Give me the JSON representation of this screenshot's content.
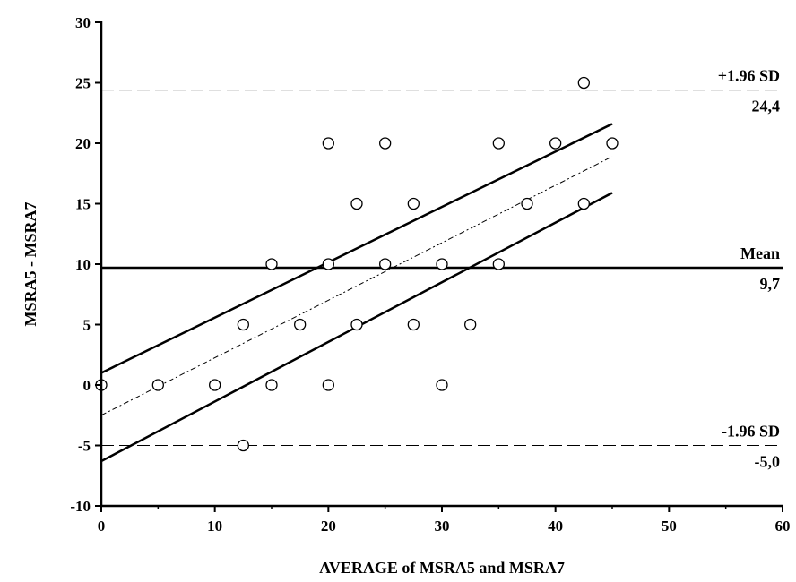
{
  "chart_data": {
    "type": "scatter",
    "title": "",
    "xlabel": "AVERAGE of MSRA5 and MSRA7",
    "ylabel": "MSRA5 - MSRA7",
    "xlim": [
      0,
      60
    ],
    "ylim": [
      -10,
      30
    ],
    "x_ticks": [
      0,
      10,
      20,
      30,
      40,
      50,
      60
    ],
    "y_ticks": [
      -10,
      -5,
      0,
      5,
      10,
      15,
      20,
      25,
      30
    ],
    "grid": false,
    "points": [
      {
        "x": 0,
        "y": 0
      },
      {
        "x": 5,
        "y": 0
      },
      {
        "x": 10,
        "y": 0
      },
      {
        "x": 15,
        "y": 0
      },
      {
        "x": 20,
        "y": 0
      },
      {
        "x": 30,
        "y": 0
      },
      {
        "x": 12.5,
        "y": -5
      },
      {
        "x": 12.5,
        "y": 5
      },
      {
        "x": 17.5,
        "y": 5
      },
      {
        "x": 22.5,
        "y": 5
      },
      {
        "x": 27.5,
        "y": 5
      },
      {
        "x": 32.5,
        "y": 5
      },
      {
        "x": 15,
        "y": 10
      },
      {
        "x": 20,
        "y": 10
      },
      {
        "x": 25,
        "y": 10
      },
      {
        "x": 30,
        "y": 10
      },
      {
        "x": 35,
        "y": 10
      },
      {
        "x": 22.5,
        "y": 15
      },
      {
        "x": 27.5,
        "y": 15
      },
      {
        "x": 37.5,
        "y": 15
      },
      {
        "x": 42.5,
        "y": 15
      },
      {
        "x": 20,
        "y": 20
      },
      {
        "x": 25,
        "y": 20
      },
      {
        "x": 35,
        "y": 20
      },
      {
        "x": 40,
        "y": 20
      },
      {
        "x": 45,
        "y": 20
      },
      {
        "x": 42.5,
        "y": 25
      }
    ],
    "reference_lines": [
      {
        "name": "+1.96 SD",
        "value_label": "24,4",
        "y": 24.4,
        "style": "dashed"
      },
      {
        "name": "Mean",
        "value_label": "9,7",
        "y": 9.7,
        "style": "solid"
      },
      {
        "name": "-1.96 SD",
        "value_label": "-5,0",
        "y": -5.0,
        "style": "dashed"
      }
    ],
    "regression": {
      "fit": {
        "x": [
          0,
          45
        ],
        "y": [
          -2.5,
          18.9
        ]
      },
      "ci_upper": {
        "x": [
          0,
          45
        ],
        "y": [
          1.0,
          21.6
        ]
      },
      "ci_lower": {
        "x": [
          0,
          45
        ],
        "y": [
          -6.3,
          15.9
        ]
      }
    }
  }
}
